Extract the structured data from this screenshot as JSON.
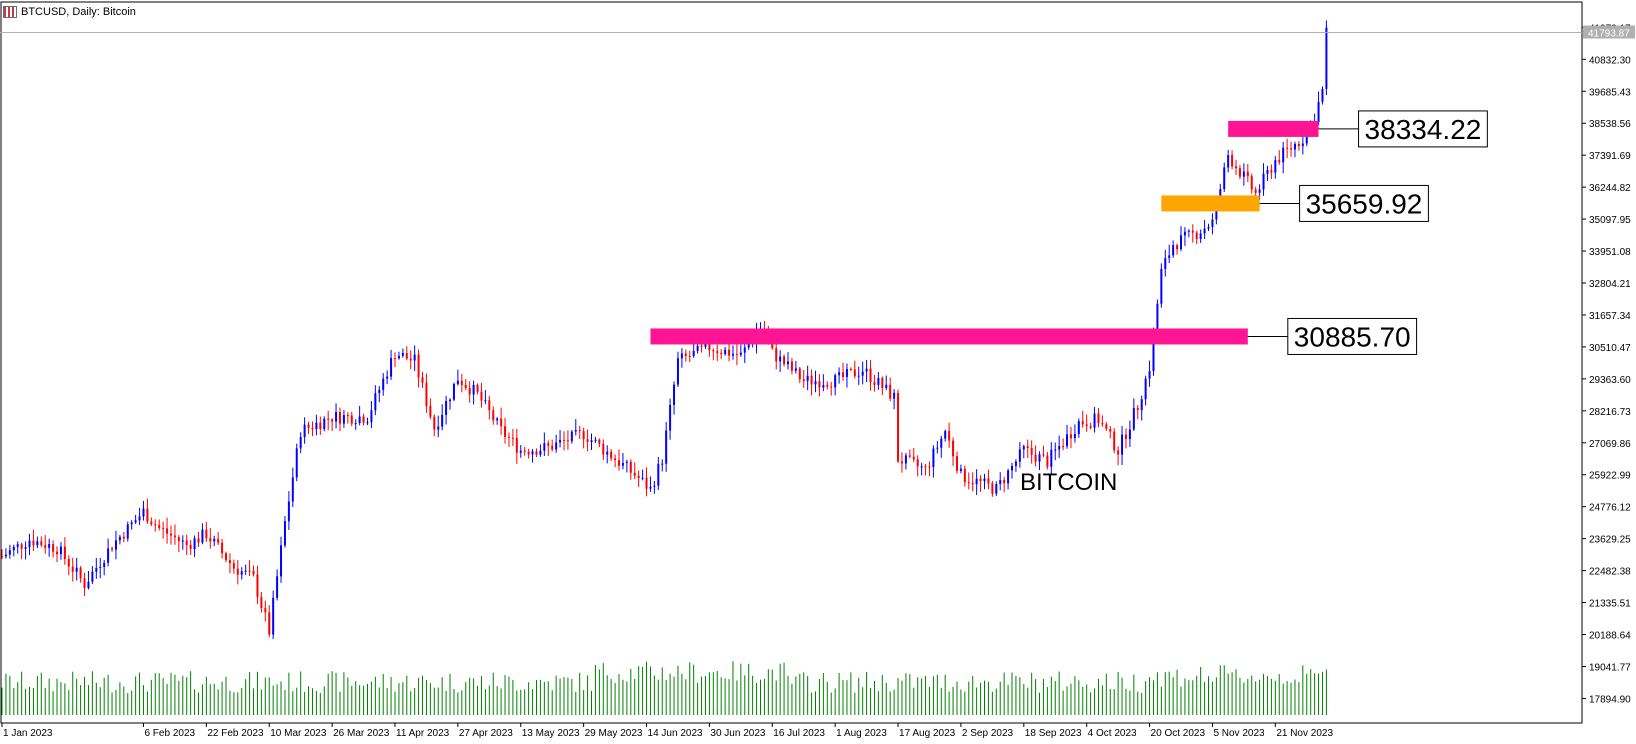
{
  "header": {
    "symbol_title": "BTCUSD, Daily:  Bitcoin",
    "icon": "chart-window-icon"
  },
  "chart_data": {
    "type": "candlestick",
    "title": "BTCUSD, Daily:  Bitcoin",
    "annotation_text": "BITCOIN",
    "ylim": [
      17300,
      42100
    ],
    "y_ticks": [
      "17894.90",
      "19041.77",
      "20188.64",
      "21335.51",
      "22482.38",
      "23629.25",
      "24776.12",
      "25922.99",
      "27069.86",
      "28216.73",
      "29363.60",
      "30510.47",
      "31657.34",
      "32804.21",
      "33951.08",
      "35097.95",
      "36244.82",
      "37391.69",
      "38538.56",
      "39685.43",
      "40832.30",
      "41979.17"
    ],
    "current_price_label": "41793.87",
    "current_price": 41793.87,
    "x_ticks": [
      {
        "label": "1 Jan 2023",
        "date": "2023-01-01"
      },
      {
        "label": "6 Feb 2023",
        "date": "2023-02-06"
      },
      {
        "label": "22 Feb 2023",
        "date": "2023-02-22"
      },
      {
        "label": "10 Mar 2023",
        "date": "2023-03-10"
      },
      {
        "label": "26 Mar 2023",
        "date": "2023-03-26"
      },
      {
        "label": "11 Apr 2023",
        "date": "2023-04-11"
      },
      {
        "label": "27 Apr 2023",
        "date": "2023-04-27"
      },
      {
        "label": "13 May 2023",
        "date": "2023-05-13"
      },
      {
        "label": "29 May 2023",
        "date": "2023-05-29"
      },
      {
        "label": "14 Jun 2023",
        "date": "2023-06-14"
      },
      {
        "label": "30 Jun 2023",
        "date": "2023-06-30"
      },
      {
        "label": "16 Jul 2023",
        "date": "2023-07-16"
      },
      {
        "label": "1 Aug 2023",
        "date": "2023-08-01"
      },
      {
        "label": "17 Aug 2023",
        "date": "2023-08-17"
      },
      {
        "label": "2 Sep 2023",
        "date": "2023-09-02"
      },
      {
        "label": "18 Sep 2023",
        "date": "2023-09-18"
      },
      {
        "label": "4 Oct 2023",
        "date": "2023-10-04"
      },
      {
        "label": "20 Oct 2023",
        "date": "2023-10-20"
      },
      {
        "label": "5 Nov 2023",
        "date": "2023-11-05"
      },
      {
        "label": "21 Nov 2023",
        "date": "2023-11-21"
      }
    ],
    "levels": [
      {
        "label": "38334.22",
        "price": 38334.22,
        "color": "#ff1493",
        "date_from": "2023-11-09",
        "date_to": "2023-12-02"
      },
      {
        "label": "35659.92",
        "price": 35659.92,
        "color": "#ffa500",
        "date_from": "2023-10-23",
        "date_to": "2023-11-17"
      },
      {
        "label": "30885.70",
        "price": 30885.7,
        "color": "#ff1493",
        "date_from": "2023-06-15",
        "date_to": "2023-11-14"
      }
    ],
    "colors": {
      "up": "#0000ff",
      "down": "#ff0000",
      "volume": "#008000"
    },
    "price_path": [
      {
        "date": "2023-01-01",
        "price": 23000
      },
      {
        "date": "2023-01-08",
        "price": 23600
      },
      {
        "date": "2023-01-15",
        "price": 23300
      },
      {
        "date": "2023-01-22",
        "price": 22000
      },
      {
        "date": "2023-01-29",
        "price": 23400
      },
      {
        "date": "2023-02-06",
        "price": 24600
      },
      {
        "date": "2023-02-10",
        "price": 24000
      },
      {
        "date": "2023-02-17",
        "price": 23400
      },
      {
        "date": "2023-02-22",
        "price": 23800
      },
      {
        "date": "2023-03-01",
        "price": 22600
      },
      {
        "date": "2023-03-06",
        "price": 22200
      },
      {
        "date": "2023-03-10",
        "price": 20300
      },
      {
        "date": "2023-03-14",
        "price": 24200
      },
      {
        "date": "2023-03-18",
        "price": 27500
      },
      {
        "date": "2023-03-26",
        "price": 28000
      },
      {
        "date": "2023-04-04",
        "price": 28000
      },
      {
        "date": "2023-04-11",
        "price": 30300
      },
      {
        "date": "2023-04-16",
        "price": 30000
      },
      {
        "date": "2023-04-21",
        "price": 27600
      },
      {
        "date": "2023-04-27",
        "price": 29400
      },
      {
        "date": "2023-05-02",
        "price": 28800
      },
      {
        "date": "2023-05-08",
        "price": 27500
      },
      {
        "date": "2023-05-13",
        "price": 26800
      },
      {
        "date": "2023-05-20",
        "price": 26900
      },
      {
        "date": "2023-05-29",
        "price": 27400
      },
      {
        "date": "2023-06-06",
        "price": 26500
      },
      {
        "date": "2023-06-12",
        "price": 25800
      },
      {
        "date": "2023-06-15",
        "price": 25400
      },
      {
        "date": "2023-06-18",
        "price": 26500
      },
      {
        "date": "2023-06-22",
        "price": 30000
      },
      {
        "date": "2023-06-30",
        "price": 30500
      },
      {
        "date": "2023-07-08",
        "price": 30200
      },
      {
        "date": "2023-07-13",
        "price": 31200
      },
      {
        "date": "2023-07-16",
        "price": 30300
      },
      {
        "date": "2023-07-24",
        "price": 29300
      },
      {
        "date": "2023-08-01",
        "price": 29300
      },
      {
        "date": "2023-08-08",
        "price": 29700
      },
      {
        "date": "2023-08-16",
        "price": 28700
      },
      {
        "date": "2023-08-17",
        "price": 26500
      },
      {
        "date": "2023-08-24",
        "price": 26100
      },
      {
        "date": "2023-08-29",
        "price": 27500
      },
      {
        "date": "2023-09-02",
        "price": 25900
      },
      {
        "date": "2023-09-11",
        "price": 25400
      },
      {
        "date": "2023-09-18",
        "price": 26800
      },
      {
        "date": "2023-09-24",
        "price": 26400
      },
      {
        "date": "2023-10-02",
        "price": 27800
      },
      {
        "date": "2023-10-07",
        "price": 27900
      },
      {
        "date": "2023-10-12",
        "price": 26800
      },
      {
        "date": "2023-10-17",
        "price": 28400
      },
      {
        "date": "2023-10-20",
        "price": 29800
      },
      {
        "date": "2023-10-23",
        "price": 33200
      },
      {
        "date": "2023-10-26",
        "price": 34200
      },
      {
        "date": "2023-11-01",
        "price": 34600
      },
      {
        "date": "2023-11-05",
        "price": 35000
      },
      {
        "date": "2023-11-09",
        "price": 37400
      },
      {
        "date": "2023-11-13",
        "price": 36600
      },
      {
        "date": "2023-11-16",
        "price": 36000
      },
      {
        "date": "2023-11-21",
        "price": 37200
      },
      {
        "date": "2023-11-28",
        "price": 38000
      },
      {
        "date": "2023-12-01",
        "price": 38800
      },
      {
        "date": "2023-12-03",
        "price": 39700
      },
      {
        "date": "2023-12-04",
        "price": 41800
      }
    ]
  }
}
